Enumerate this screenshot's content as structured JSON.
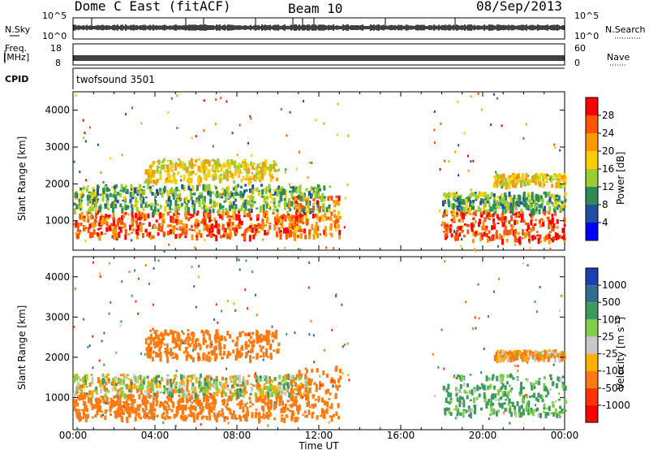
{
  "header": {
    "radar_name": "Dome C East (fitACF)",
    "beam": "Beam 10",
    "date": "08/Sep/2013"
  },
  "strips": {
    "nsky_label": "N.Sky",
    "nsky_ticks": [
      "10^5",
      "10^0"
    ],
    "nsearch_label": "N.Search",
    "nsearch_ticks": [
      "10^5",
      "10^0"
    ],
    "freq_label_line1": "Freq.",
    "freq_label_line2": "[MHz]",
    "freq_ticks": [
      "18",
      "8"
    ],
    "nave_label": "Nave",
    "nave_ticks": [
      "60",
      "0"
    ],
    "cpid_label": "CPID",
    "cpid_value": "twofsound 3501"
  },
  "panels": {
    "top_ylabel": "Slant Range [km]",
    "bottom_ylabel": "Slant Range [km]",
    "range_ticks": [
      "4000",
      "3000",
      "2000",
      "1000"
    ],
    "time_ticks": [
      "00:00",
      "04:00",
      "08:00",
      "12:00",
      "16:00",
      "20:00",
      "00:00"
    ],
    "xlabel": "Time UT"
  },
  "colorbars": {
    "power_label": "Power [dB]",
    "power_ticks": [
      "28",
      "24",
      "20",
      "16",
      "12",
      "8",
      "4"
    ],
    "power_colors": [
      "#ff0000",
      "#ff5500",
      "#ff9900",
      "#ffcc00",
      "#9acd32",
      "#2e8b57",
      "#1e4fa0",
      "#0000ff"
    ],
    "velocity_label": "Velocity [m s",
    "velocity_label_sup": "-1",
    "velocity_label_end": "]",
    "velocity_ticks": [
      "1000",
      "500",
      "100",
      "25",
      "-25",
      "-100",
      "-500",
      "-1000"
    ],
    "velocity_colors": [
      "#1e3fb0",
      "#2e6e8e",
      "#3c9a5f",
      "#7fcf4a",
      "#c8c8c8",
      "#ffb000",
      "#ff7a10",
      "#ff3300",
      "#ff0000"
    ]
  },
  "chart_data": [
    {
      "type": "heatmap",
      "title": "Dome C East (fitACF) Beam 10 08/Sep/2013",
      "xlabel": "Time UT",
      "ylabel": "Slant Range [km]",
      "xlim": [
        "00:00",
        "24:00"
      ],
      "ylim": [
        200,
        4500
      ],
      "colorbar": "Power [dB]",
      "clim": [
        0,
        32
      ],
      "blobs": [
        {
          "t0": 0.0,
          "t1": 11.2,
          "r0": 600,
          "r1": 1300,
          "value": 26
        },
        {
          "t0": 0.0,
          "t1": 12.5,
          "r0": 1300,
          "r1": 2000,
          "value": 12
        },
        {
          "t0": 3.5,
          "t1": 10.0,
          "r0": 2100,
          "r1": 2700,
          "value": 18
        },
        {
          "t0": 10.5,
          "t1": 13.0,
          "r0": 600,
          "r1": 1700,
          "value": 24
        },
        {
          "t0": 18.0,
          "t1": 24.0,
          "r0": 500,
          "r1": 1300,
          "value": 27
        },
        {
          "t0": 18.0,
          "t1": 24.0,
          "r0": 1300,
          "r1": 1800,
          "value": 12
        },
        {
          "t0": 20.5,
          "t1": 24.0,
          "r0": 2000,
          "r1": 2300,
          "value": 18
        }
      ]
    },
    {
      "type": "heatmap",
      "title": "Dome C East (fitACF) Beam 10 08/Sep/2013",
      "xlabel": "Time UT",
      "ylabel": "Slant Range [km]",
      "xlim": [
        "00:00",
        "24:00"
      ],
      "ylim": [
        200,
        4500
      ],
      "colorbar": "Velocity [m s-1]",
      "clim": [
        -1000,
        1000
      ],
      "blobs": [
        {
          "t0": 0.0,
          "t1": 11.0,
          "r0": 500,
          "r1": 1100,
          "value": -300
        },
        {
          "t0": 0.0,
          "t1": 11.5,
          "r0": 1100,
          "r1": 1600,
          "value": 0
        },
        {
          "t0": 3.5,
          "t1": 10.0,
          "r0": 2000,
          "r1": 2700,
          "value": -300
        },
        {
          "t0": 10.5,
          "t1": 13.0,
          "r0": 500,
          "r1": 1800,
          "value": -300
        },
        {
          "t0": 18.0,
          "t1": 24.0,
          "r0": 600,
          "r1": 1600,
          "value": 150
        },
        {
          "t0": 20.5,
          "t1": 24.0,
          "r0": 2000,
          "r1": 2200,
          "value": -100
        }
      ]
    }
  ]
}
